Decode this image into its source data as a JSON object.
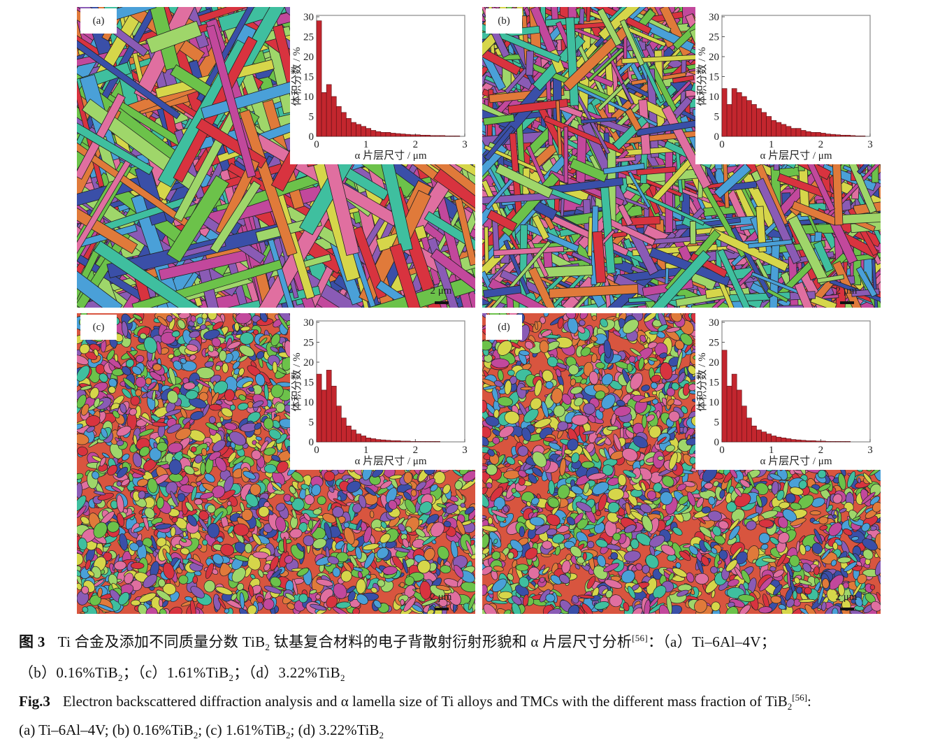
{
  "figure": {
    "panels": [
      {
        "label": "(a)",
        "scale": "2 μm"
      },
      {
        "label": "(b)",
        "scale": "2 μm"
      },
      {
        "label": "(c)",
        "scale": "2 μm"
      },
      {
        "label": "(d)",
        "scale": "2 μm"
      }
    ]
  },
  "chart_data": [
    {
      "type": "histogram",
      "xlabel": "α 片层尺寸 / μm",
      "ylabel": "体积分数 / %",
      "color": "#c3262e",
      "xlim": [
        0,
        3
      ],
      "xticks": [
        0,
        1,
        2,
        3
      ],
      "ylim": [
        0,
        30
      ],
      "yticks": [
        0,
        5,
        10,
        15,
        20,
        25,
        30
      ],
      "bins": [
        0.1,
        0.2,
        0.3,
        0.4,
        0.5,
        0.6,
        0.7,
        0.8,
        0.9,
        1.0,
        1.1,
        1.2,
        1.3,
        1.4,
        1.5,
        1.6,
        1.7,
        1.8,
        1.9,
        2.0,
        2.1,
        2.2,
        2.3,
        2.4,
        2.5,
        2.6,
        2.7,
        2.8,
        2.9,
        3.0
      ],
      "values": [
        29,
        11,
        13,
        10,
        7.5,
        6,
        4.5,
        3.5,
        3,
        2.5,
        2,
        1.5,
        1.2,
        1,
        1,
        0.8,
        0.7,
        0.6,
        0.5,
        0.4,
        0.4,
        0.3,
        0.3,
        0.2,
        0.2,
        0.2,
        0.1,
        0.1,
        0.1
      ]
    },
    {
      "type": "histogram",
      "xlabel": "α 片层尺寸 / μm",
      "ylabel": "体积分数 / %",
      "color": "#c3262e",
      "xlim": [
        0,
        3
      ],
      "xticks": [
        0,
        1,
        2,
        3
      ],
      "ylim": [
        0,
        30
      ],
      "yticks": [
        0,
        5,
        10,
        15,
        20,
        25,
        30
      ],
      "bins": [
        0.1,
        0.2,
        0.3,
        0.4,
        0.5,
        0.6,
        0.7,
        0.8,
        0.9,
        1.0,
        1.1,
        1.2,
        1.3,
        1.4,
        1.5,
        1.6,
        1.7,
        1.8,
        1.9,
        2.0,
        2.1,
        2.2,
        2.3,
        2.4,
        2.5,
        2.6,
        2.7,
        2.8,
        2.9,
        3.0
      ],
      "values": [
        12,
        8,
        12,
        11,
        10,
        9,
        8,
        7,
        6,
        5,
        4,
        3.5,
        3,
        2.5,
        2,
        2,
        1.5,
        1.2,
        1,
        1,
        0.8,
        0.6,
        0.5,
        0.4,
        0.3,
        0.3,
        0.2,
        0.1,
        0.1
      ]
    },
    {
      "type": "histogram",
      "xlabel": "α 片层尺寸 / μm",
      "ylabel": "体积分数 / %",
      "color": "#c3262e",
      "xlim": [
        0,
        3
      ],
      "xticks": [
        0,
        1,
        2,
        3
      ],
      "ylim": [
        0,
        30
      ],
      "yticks": [
        0,
        5,
        10,
        15,
        20,
        25,
        30
      ],
      "bins": [
        0.1,
        0.2,
        0.3,
        0.4,
        0.5,
        0.6,
        0.7,
        0.8,
        0.9,
        1.0,
        1.1,
        1.2,
        1.3,
        1.4,
        1.5,
        1.6,
        1.7,
        1.8,
        1.9,
        2.0,
        2.1,
        2.2,
        2.3,
        2.4,
        2.5,
        2.6,
        2.7,
        2.8,
        2.9,
        3.0
      ],
      "values": [
        17,
        13,
        18,
        14,
        9,
        6,
        4,
        3,
        2,
        1.5,
        1,
        0.8,
        0.6,
        0.5,
        0.4,
        0.3,
        0.3,
        0.2,
        0.2,
        0.1,
        0.1,
        0.1,
        0.1,
        0.1,
        0.1,
        0,
        0,
        0,
        0
      ]
    },
    {
      "type": "histogram",
      "xlabel": "α 片层尺寸 / μm",
      "ylabel": "体积分数 / %",
      "color": "#c3262e",
      "xlim": [
        0,
        3
      ],
      "xticks": [
        0,
        1,
        2,
        3
      ],
      "ylim": [
        0,
        30
      ],
      "yticks": [
        0,
        5,
        10,
        15,
        20,
        25,
        30
      ],
      "bins": [
        0.1,
        0.2,
        0.3,
        0.4,
        0.5,
        0.6,
        0.7,
        0.8,
        0.9,
        1.0,
        1.1,
        1.2,
        1.3,
        1.4,
        1.5,
        1.6,
        1.7,
        1.8,
        1.9,
        2.0,
        2.1,
        2.2,
        2.3,
        2.4,
        2.5,
        2.6,
        2.7,
        2.8,
        2.9,
        3.0
      ],
      "values": [
        23,
        14,
        17,
        13,
        9,
        6,
        4,
        3,
        2.5,
        2,
        1.5,
        1.2,
        1,
        0.8,
        0.6,
        0.5,
        0.4,
        0.3,
        0.3,
        0.2,
        0.2,
        0.1,
        0.1,
        0.1,
        0.1,
        0.1,
        0,
        0,
        0
      ]
    }
  ],
  "caption_zh": {
    "label": "图 3",
    "line1": [
      "Ti 合金及添加不同质量分数 TiB",
      "2",
      " 钛基复合材料的电子背散射衍射形貌和 α 片层尺寸分析",
      "[56]",
      "：（a）Ti–6Al–4V；"
    ],
    "line2": [
      "（b）0.16%TiB",
      "2",
      "；（c）1.61%TiB",
      "2",
      "；（d）3.22%TiB",
      "2"
    ]
  },
  "caption_en": {
    "label": "Fig.3",
    "line1": [
      "Electron backscattered diffraction analysis and α lamella size of Ti alloys and TMCs with the different mass fraction of TiB",
      "2",
      "[56]",
      ":"
    ],
    "line2": [
      "(a) Ti–6Al–4V; (b) 0.16%TiB",
      "2",
      "; (c) 1.61%TiB",
      "2",
      "; (d) 3.22%TiB",
      "2"
    ]
  }
}
